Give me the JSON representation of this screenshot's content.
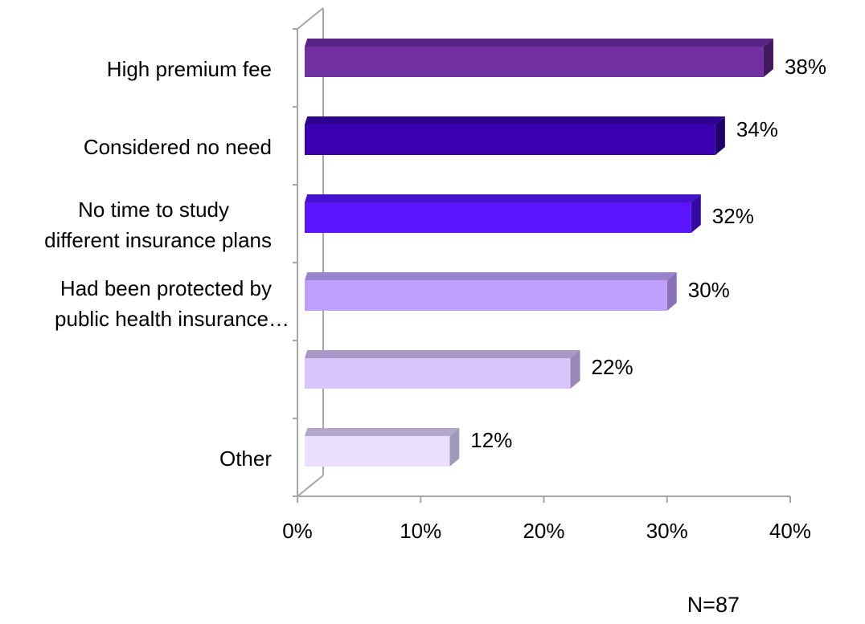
{
  "chart_data": {
    "type": "bar",
    "orientation": "horizontal",
    "three_d": true,
    "categories": [
      [
        "High premium fee"
      ],
      [
        "Considered no need"
      ],
      [
        "No time to study",
        "different insurance plans"
      ],
      [
        "Had been protected by",
        "public health insurance…"
      ],
      [
        ""
      ],
      [
        "Other"
      ]
    ],
    "values": [
      38,
      34,
      32,
      30,
      22,
      12
    ],
    "value_labels": [
      "38%",
      "34%",
      "32%",
      "30%",
      "22%",
      "12%"
    ],
    "xlim": [
      0,
      40
    ],
    "xticks": [
      0,
      10,
      20,
      30,
      40
    ],
    "xtick_labels": [
      "0%",
      "10%",
      "20%",
      "30%",
      "40%"
    ],
    "grid": false,
    "legend": "none",
    "title": "",
    "xlabel": "",
    "ylabel": "",
    "note": "N=87",
    "colors": [
      {
        "front": "#7030a0",
        "top": "#5b2285",
        "side": "#40185e"
      },
      {
        "front": "#3a00b0",
        "top": "#2d0090",
        "side": "#200068"
      },
      {
        "front": "#5a14ff",
        "top": "#4610cc",
        "side": "#3309a0"
      },
      {
        "front": "#c0a0ff",
        "top": "#9b82cc",
        "side": "#8a72b8"
      },
      {
        "front": "#d6c6fb",
        "top": "#a898c8",
        "side": "#9888b8"
      },
      {
        "front": "#ebe0fd",
        "top": "#b4a8cc",
        "side": "#a09ab8"
      }
    ],
    "axis_color": "#a6a6a6"
  }
}
